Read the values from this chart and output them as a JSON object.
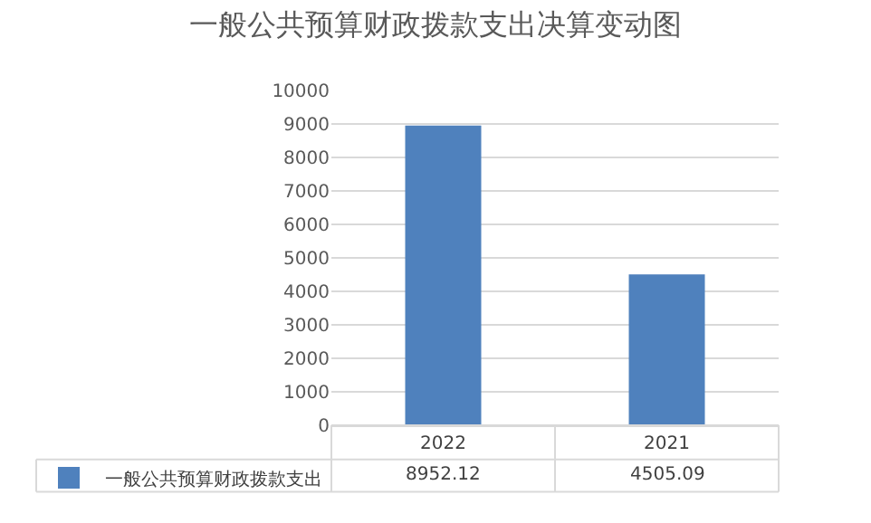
{
  "chart_data": {
    "type": "bar",
    "title": "一般公共预算财政拨款支出决算变动图",
    "categories": [
      "2022",
      "2021"
    ],
    "series": [
      {
        "name": "一般公共预算财政拨款支出",
        "color": "#4f81bd",
        "values": [
          8952.12,
          4505.09
        ]
      }
    ],
    "ylim": [
      0,
      10000
    ],
    "yticks": [
      0,
      1000,
      2000,
      3000,
      4000,
      5000,
      6000,
      7000,
      8000,
      9000,
      10000
    ],
    "grid": "y",
    "legend": "bottom",
    "data_labels": true
  }
}
